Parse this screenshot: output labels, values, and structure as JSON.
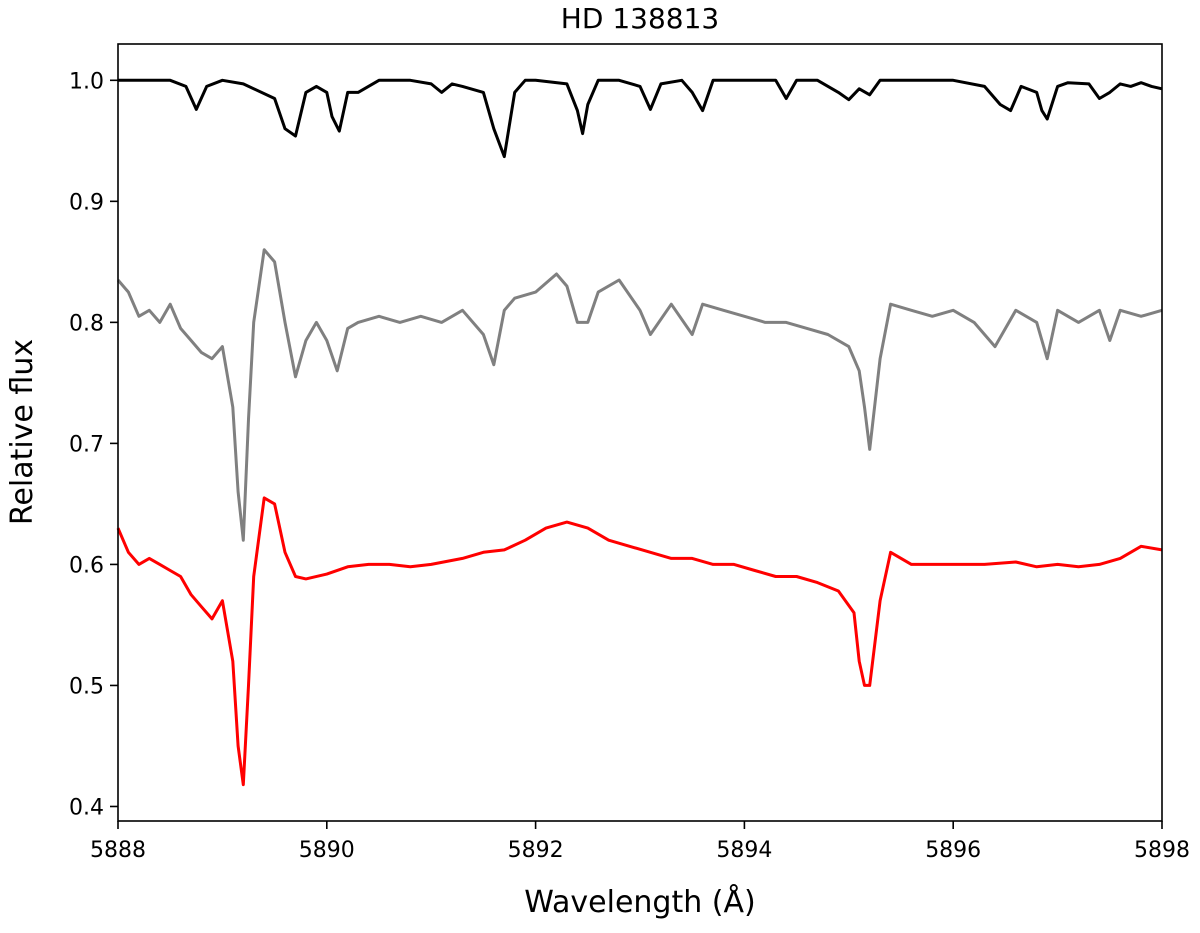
{
  "chart_data": {
    "type": "line",
    "title": "HD 138813",
    "xlabel": "Wavelength (Å)",
    "ylabel": "Relative flux",
    "xlim": [
      5888,
      5898
    ],
    "ylim": [
      0.388,
      1.03
    ],
    "xticks": [
      5888,
      5890,
      5892,
      5894,
      5896,
      5898
    ],
    "yticks": [
      0.4,
      0.5,
      0.6,
      0.7,
      0.8,
      0.9,
      1.0
    ],
    "xtick_labels": [
      "5888",
      "5890",
      "5892",
      "5894",
      "5896",
      "5898"
    ],
    "ytick_labels": [
      "0.4",
      "0.5",
      "0.6",
      "0.7",
      "0.8",
      "0.9",
      "1.0"
    ],
    "grid": false,
    "legend": "none",
    "series": [
      {
        "color": "#000000",
        "x": [
          5888.0,
          5888.5,
          5888.65,
          5888.75,
          5888.85,
          5889.0,
          5889.2,
          5889.5,
          5889.6,
          5889.7,
          5889.8,
          5889.9,
          5890.0,
          5890.05,
          5890.12,
          5890.2,
          5890.3,
          5890.5,
          5890.8,
          5891.0,
          5891.1,
          5891.2,
          5891.3,
          5891.5,
          5891.6,
          5891.7,
          5891.8,
          5891.9,
          5892.0,
          5892.3,
          5892.4,
          5892.45,
          5892.5,
          5892.6,
          5892.8,
          5893.0,
          5893.1,
          5893.2,
          5893.4,
          5893.5,
          5893.6,
          5893.7,
          5894.0,
          5894.3,
          5894.4,
          5894.5,
          5894.7,
          5894.9,
          5895.0,
          5895.1,
          5895.2,
          5895.3,
          5895.5,
          5896.0,
          5896.3,
          5896.45,
          5896.55,
          5896.65,
          5896.8,
          5896.85,
          5896.9,
          5897.0,
          5897.1,
          5897.3,
          5897.4,
          5897.5,
          5897.6,
          5897.7,
          5897.8,
          5897.9,
          5898.0
        ],
        "y": [
          1.0,
          1.0,
          0.995,
          0.976,
          0.995,
          1.0,
          0.997,
          0.985,
          0.96,
          0.954,
          0.99,
          0.995,
          0.99,
          0.97,
          0.958,
          0.99,
          0.99,
          1.0,
          1.0,
          0.997,
          0.99,
          0.997,
          0.995,
          0.99,
          0.96,
          0.937,
          0.99,
          1.0,
          1.0,
          0.997,
          0.975,
          0.956,
          0.98,
          1.0,
          1.0,
          0.995,
          0.976,
          0.997,
          1.0,
          0.99,
          0.975,
          1.0,
          1.0,
          1.0,
          0.985,
          1.0,
          1.0,
          0.99,
          0.984,
          0.993,
          0.988,
          1.0,
          1.0,
          1.0,
          0.995,
          0.98,
          0.975,
          0.995,
          0.99,
          0.975,
          0.968,
          0.995,
          0.998,
          0.997,
          0.985,
          0.99,
          0.997,
          0.995,
          0.998,
          0.995,
          0.993
        ]
      },
      {
        "color": "#808080",
        "x": [
          5888.0,
          5888.1,
          5888.2,
          5888.3,
          5888.4,
          5888.5,
          5888.6,
          5888.7,
          5888.8,
          5888.9,
          5889.0,
          5889.1,
          5889.15,
          5889.2,
          5889.25,
          5889.3,
          5889.4,
          5889.5,
          5889.6,
          5889.7,
          5889.8,
          5889.9,
          5890.0,
          5890.1,
          5890.2,
          5890.3,
          5890.5,
          5890.7,
          5890.9,
          5891.1,
          5891.3,
          5891.5,
          5891.6,
          5891.7,
          5891.8,
          5892.0,
          5892.2,
          5892.3,
          5892.4,
          5892.5,
          5892.6,
          5892.8,
          5893.0,
          5893.1,
          5893.3,
          5893.5,
          5893.6,
          5893.8,
          5894.0,
          5894.2,
          5894.4,
          5894.6,
          5894.8,
          5895.0,
          5895.1,
          5895.15,
          5895.2,
          5895.3,
          5895.4,
          5895.6,
          5895.8,
          5896.0,
          5896.2,
          5896.4,
          5896.6,
          5896.8,
          5896.9,
          5897.0,
          5897.2,
          5897.4,
          5897.5,
          5897.6,
          5897.8,
          5898.0
        ],
        "y": [
          0.835,
          0.825,
          0.805,
          0.81,
          0.8,
          0.815,
          0.795,
          0.785,
          0.775,
          0.77,
          0.78,
          0.73,
          0.66,
          0.62,
          0.72,
          0.8,
          0.86,
          0.85,
          0.8,
          0.755,
          0.785,
          0.8,
          0.785,
          0.76,
          0.795,
          0.8,
          0.805,
          0.8,
          0.805,
          0.8,
          0.81,
          0.79,
          0.765,
          0.81,
          0.82,
          0.825,
          0.84,
          0.83,
          0.8,
          0.8,
          0.825,
          0.835,
          0.81,
          0.79,
          0.815,
          0.79,
          0.815,
          0.81,
          0.805,
          0.8,
          0.8,
          0.795,
          0.79,
          0.78,
          0.76,
          0.73,
          0.695,
          0.77,
          0.815,
          0.81,
          0.805,
          0.81,
          0.8,
          0.78,
          0.81,
          0.8,
          0.77,
          0.81,
          0.8,
          0.81,
          0.785,
          0.81,
          0.805,
          0.81
        ]
      },
      {
        "color": "#ff0000",
        "x": [
          5888.0,
          5888.1,
          5888.2,
          5888.3,
          5888.4,
          5888.5,
          5888.6,
          5888.7,
          5888.8,
          5888.9,
          5889.0,
          5889.1,
          5889.15,
          5889.2,
          5889.25,
          5889.3,
          5889.4,
          5889.5,
          5889.6,
          5889.7,
          5889.8,
          5890.0,
          5890.2,
          5890.4,
          5890.6,
          5890.8,
          5891.0,
          5891.3,
          5891.5,
          5891.7,
          5891.9,
          5892.1,
          5892.3,
          5892.5,
          5892.7,
          5892.9,
          5893.1,
          5893.3,
          5893.5,
          5893.7,
          5893.9,
          5894.1,
          5894.3,
          5894.5,
          5894.7,
          5894.9,
          5895.05,
          5895.1,
          5895.15,
          5895.2,
          5895.3,
          5895.4,
          5895.6,
          5895.8,
          5896.0,
          5896.3,
          5896.6,
          5896.8,
          5897.0,
          5897.2,
          5897.4,
          5897.6,
          5897.8,
          5898.0
        ],
        "y": [
          0.63,
          0.61,
          0.6,
          0.605,
          0.6,
          0.595,
          0.59,
          0.575,
          0.565,
          0.555,
          0.57,
          0.52,
          0.45,
          0.418,
          0.5,
          0.59,
          0.655,
          0.65,
          0.61,
          0.59,
          0.588,
          0.592,
          0.598,
          0.6,
          0.6,
          0.598,
          0.6,
          0.605,
          0.61,
          0.612,
          0.62,
          0.63,
          0.635,
          0.63,
          0.62,
          0.615,
          0.61,
          0.605,
          0.605,
          0.6,
          0.6,
          0.595,
          0.59,
          0.59,
          0.585,
          0.578,
          0.56,
          0.52,
          0.5,
          0.5,
          0.57,
          0.61,
          0.6,
          0.6,
          0.6,
          0.6,
          0.602,
          0.598,
          0.6,
          0.598,
          0.6,
          0.605,
          0.615,
          0.612
        ]
      }
    ]
  }
}
